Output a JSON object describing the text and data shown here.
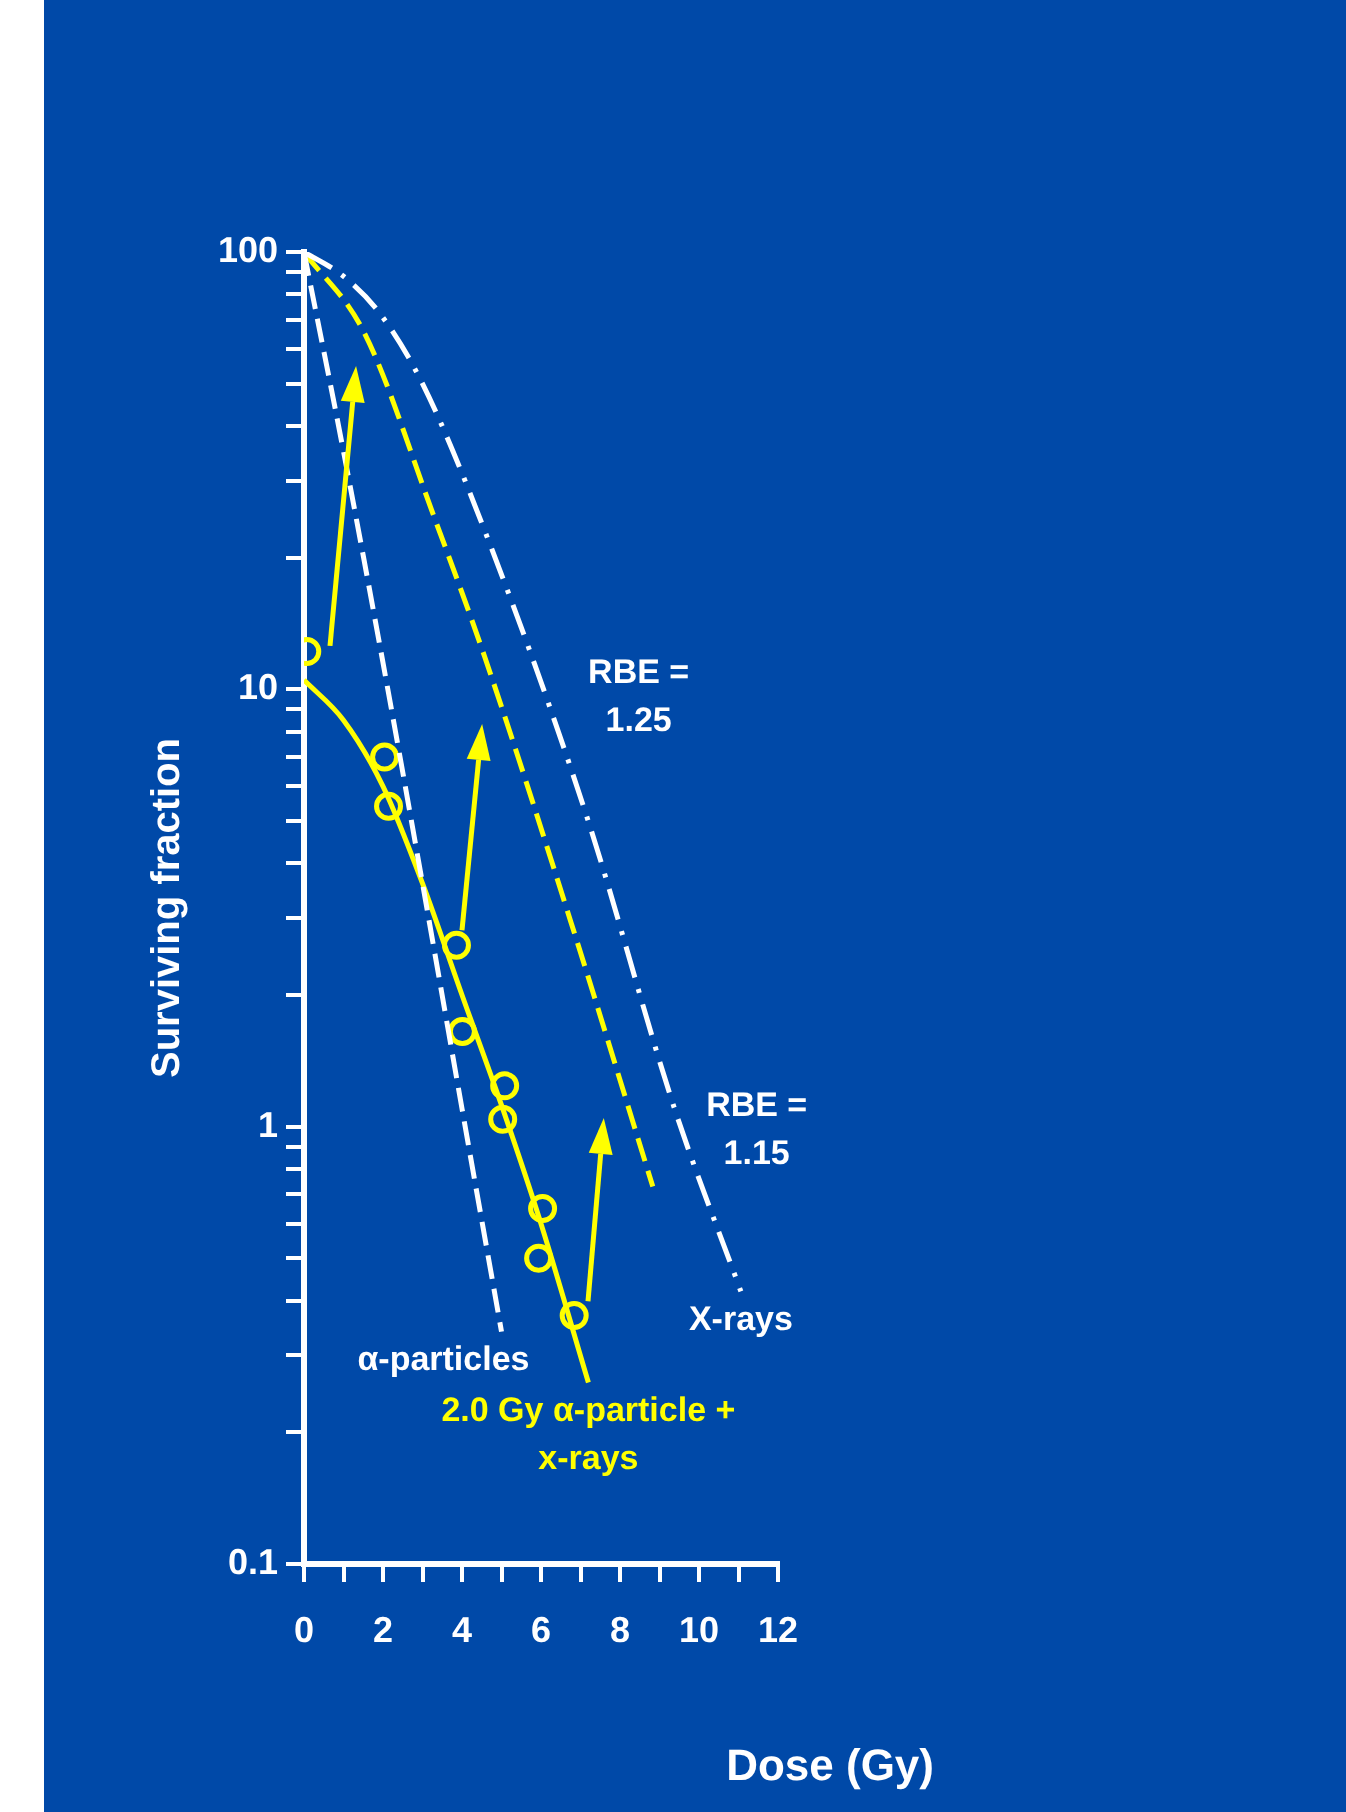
{
  "chart_data": {
    "type": "line",
    "xlabel": "Dose (Gy)",
    "ylabel": "Surviving fraction",
    "log": "y",
    "xlim": [
      0,
      12
    ],
    "ylim": [
      0.1,
      100
    ],
    "xticks": [
      0,
      {
        "value": 1,
        "label": null
      },
      2,
      {
        "value": 3,
        "label": null
      },
      4,
      {
        "value": 5,
        "label": null
      },
      6,
      {
        "value": 7,
        "label": null
      },
      8,
      {
        "value": 9,
        "label": null
      },
      10,
      {
        "value": 11,
        "label": null
      },
      12
    ],
    "yticks": [
      0.1,
      {
        "value": 0.2,
        "label": null
      },
      {
        "value": 0.3,
        "label": null
      },
      {
        "value": 0.4,
        "label": null
      },
      {
        "value": 0.5,
        "label": null
      },
      {
        "value": 0.6,
        "label": null
      },
      {
        "value": 0.7,
        "label": null
      },
      {
        "value": 0.8,
        "label": null
      },
      {
        "value": 0.9,
        "label": null
      },
      1,
      {
        "value": 2,
        "label": null
      },
      {
        "value": 3,
        "label": null
      },
      {
        "value": 4,
        "label": null
      },
      {
        "value": 5,
        "label": null
      },
      {
        "value": 6,
        "label": null
      },
      {
        "value": 7,
        "label": null
      },
      {
        "value": 8,
        "label": null
      },
      {
        "value": 9,
        "label": null
      },
      10,
      {
        "value": 20,
        "label": null
      },
      {
        "value": 30,
        "label": null
      },
      {
        "value": 40,
        "label": null
      },
      {
        "value": 50,
        "label": null
      },
      {
        "value": 60,
        "label": null
      },
      {
        "value": 70,
        "label": null
      },
      {
        "value": 80,
        "label": null
      },
      {
        "value": 90,
        "label": null
      },
      100
    ],
    "grid": false,
    "legend": false,
    "series": [
      {
        "name": "α-particles",
        "color": "#ffffff",
        "line_style": "dashed",
        "marker": "none",
        "x": [
          0,
          1,
          2,
          3,
          4,
          5
        ],
        "values": [
          100,
          35,
          11.5,
          3.6,
          1.1,
          0.34
        ]
      },
      {
        "name": "X-rays",
        "color": "#ffffff",
        "line_style": "dashdot",
        "marker": "none",
        "x": [
          0,
          1,
          1.94,
          3,
          4.62,
          7.15,
          9.38,
          11.06
        ],
        "values": [
          100,
          88,
          72,
          50,
          22.5,
          5.15,
          1.1,
          0.42
        ]
      },
      {
        "color": "#ffff00",
        "line_style": "dashed",
        "marker": "none",
        "x": [
          0,
          1.54,
          3.3,
          4.57,
          6.75,
          8.83
        ],
        "values": [
          100,
          65,
          24.7,
          11.9,
          2.95,
          0.73
        ]
      },
      {
        "name": "2.0 Gy α-particle + x-rays",
        "color": "#ffff00",
        "line_style": "solid",
        "marker": "none",
        "x": [
          0,
          1,
          2,
          3,
          4,
          5,
          6,
          7.2
        ],
        "values": [
          10.5,
          8.5,
          6,
          3.6,
          2,
          1.12,
          0.6,
          0.26
        ]
      },
      {
        "type": "scatter",
        "color": "#ffff00",
        "marker": "circle",
        "x": [
          0.07,
          2.04,
          2.14,
          3.86,
          4.01,
          5.08,
          5.03,
          6.04,
          5.94,
          6.84
        ],
        "values": [
          12.2,
          7.0,
          5.4,
          2.6,
          1.65,
          1.24,
          1.04,
          0.65,
          0.5,
          0.37
        ]
      }
    ],
    "annotations": [
      "RBE = 1.25",
      "RBE = 1.15"
    ]
  }
}
